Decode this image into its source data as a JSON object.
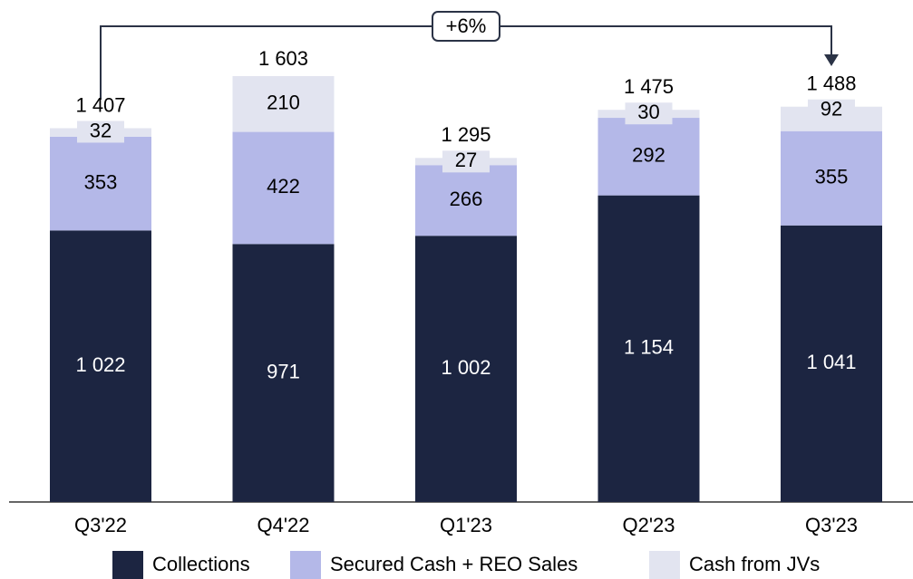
{
  "chart_data": {
    "type": "stacked_bar",
    "annotation": "+6%",
    "categories": [
      "Q3'22",
      "Q4'22",
      "Q1'23",
      "Q2'23",
      "Q3'23"
    ],
    "series": [
      {
        "name": "Collections",
        "color": "#1c2541",
        "values": [
          1022,
          971,
          1002,
          1154,
          1041
        ],
        "value_labels": [
          "1 022",
          "971",
          "1 002",
          "1 154",
          "1 041"
        ],
        "label_color": "#ffffff"
      },
      {
        "name": "Secured Cash + REO Sales",
        "color": "#b4b8e8",
        "values": [
          353,
          422,
          266,
          292,
          355
        ],
        "label_color": "#000000"
      },
      {
        "name": "Cash from JVs",
        "color": "#e2e4f0",
        "values": [
          32,
          210,
          27,
          30,
          92
        ],
        "label_color": "#000000"
      }
    ],
    "totals": [
      1407,
      1603,
      1295,
      1475,
      1488
    ],
    "total_labels": [
      "1 407",
      "1 603",
      "1 295",
      "1 475",
      "1 488"
    ]
  }
}
